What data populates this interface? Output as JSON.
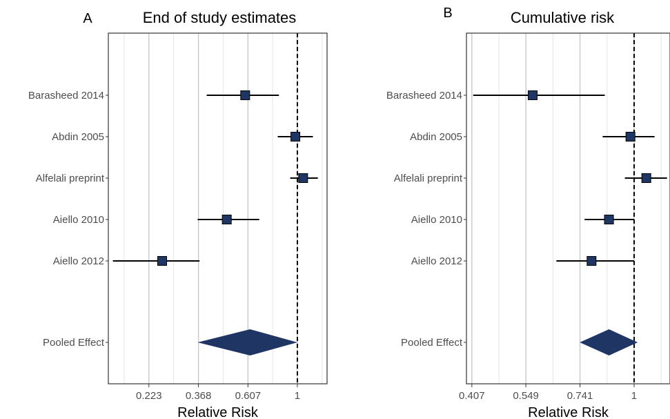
{
  "colors": {
    "marker": "#1f3564",
    "marker_stroke": "#000000",
    "gridline": "#c4c4c4",
    "gridline_minor": "#e4e4e4",
    "panel_border": "#333333",
    "ci_line": "#000000",
    "reference_line": "#000000"
  },
  "chart_data": [
    {
      "type": "forest",
      "panel_label": "A",
      "title": "End of study estimates",
      "xlabel": "Relative Risk",
      "x_scale": "log",
      "xlim": [
        0.148,
        1.35
      ],
      "xticks": [
        0.223,
        0.368,
        0.607,
        1
      ],
      "xtick_labels": [
        "0.223",
        "0.368",
        "0.607",
        "1"
      ],
      "reference_line": 1,
      "grid": true,
      "studies": [
        {
          "label": "Barasheed 2014",
          "estimate": 0.59,
          "lower": 0.4,
          "upper": 0.83
        },
        {
          "label": "Abdin 2005",
          "estimate": 0.98,
          "lower": 0.82,
          "upper": 1.17
        },
        {
          "label": "Alfelali preprint",
          "estimate": 1.06,
          "lower": 0.93,
          "upper": 1.23
        },
        {
          "label": "Aiello 2010",
          "estimate": 0.49,
          "lower": 0.365,
          "upper": 0.68
        },
        {
          "label": "Aiello 2012",
          "estimate": 0.255,
          "lower": 0.155,
          "upper": 0.372
        }
      ],
      "pooled": {
        "label": "Pooled Effect",
        "estimate": 0.62,
        "lower": 0.365,
        "upper": 1.0
      }
    },
    {
      "type": "forest",
      "panel_label": "B",
      "title": "Cumulative risk",
      "xlabel": "Relative Risk",
      "x_scale": "log",
      "xlim": [
        0.395,
        1.22
      ],
      "xticks": [
        0.407,
        0.549,
        0.741,
        1
      ],
      "xtick_labels": [
        "0.407",
        "0.549",
        "0.741",
        "1"
      ],
      "reference_line": 1,
      "grid": true,
      "studies": [
        {
          "label": "Barasheed 2014",
          "estimate": 0.57,
          "lower": 0.41,
          "upper": 0.85
        },
        {
          "label": "Abdin 2005",
          "estimate": 0.98,
          "lower": 0.84,
          "upper": 1.12
        },
        {
          "label": "Alfelali preprint",
          "estimate": 1.07,
          "lower": 0.95,
          "upper": 1.2
        },
        {
          "label": "Aiello 2010",
          "estimate": 0.87,
          "lower": 0.76,
          "upper": 1.0
        },
        {
          "label": "Aiello 2012",
          "estimate": 0.79,
          "lower": 0.65,
          "upper": 1.0
        }
      ],
      "pooled": {
        "label": "Pooled Effect",
        "estimate": 0.87,
        "lower": 0.74,
        "upper": 1.02
      }
    }
  ]
}
